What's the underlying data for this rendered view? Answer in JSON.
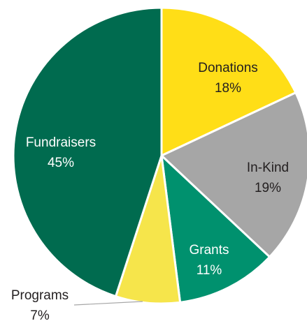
{
  "chart_data": {
    "type": "pie",
    "title": "",
    "slices": [
      {
        "label": "Donations",
        "value": 18,
        "percent_label": "18%",
        "color": "#ffde17",
        "text_color": "#231f20"
      },
      {
        "label": "In-Kind",
        "value": 19,
        "percent_label": "19%",
        "color": "#a6a6a6",
        "text_color": "#231f20"
      },
      {
        "label": "Grants",
        "value": 11,
        "percent_label": "11%",
        "color": "#00916e",
        "text_color": "#ffffff"
      },
      {
        "label": "Programs",
        "value": 7,
        "percent_label": "7%",
        "color": "#f6e54b",
        "text_color": "#231f20"
      },
      {
        "label": "Fundraisers",
        "value": 45,
        "percent_label": "45%",
        "color": "#006b4f",
        "text_color": "#ffffff"
      }
    ],
    "start_angle": "12 o'clock",
    "direction": "clockwise",
    "slice_border_color": "#ffffff",
    "legend": "none",
    "leader_line_color": "#a6a6a6"
  }
}
